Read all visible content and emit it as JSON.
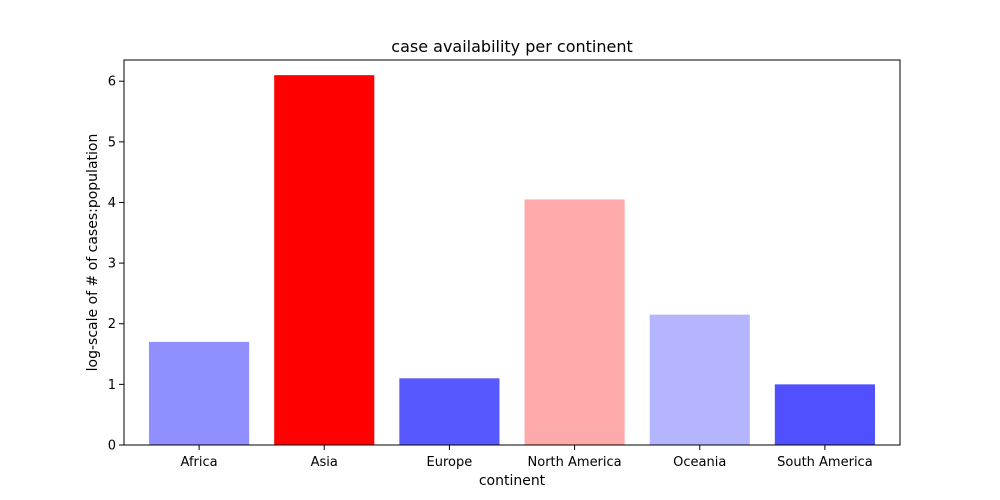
{
  "chart_data": {
    "type": "bar",
    "title": "case availability per continent",
    "xlabel": "continent",
    "ylabel": "log-scale of # of cases:population",
    "categories": [
      "Africa",
      "Asia",
      "Europe",
      "North America",
      "Oceania",
      "South America"
    ],
    "values": [
      1.7,
      6.1,
      1.1,
      4.05,
      2.15,
      1.0
    ],
    "colors": [
      "#8f8fff",
      "#ff0000",
      "#5858ff",
      "#ffaaaa",
      "#b4b4ff",
      "#5050ff"
    ],
    "ylim": [
      0,
      6.35
    ],
    "yticks": [
      "0",
      "1",
      "2",
      "3",
      "4",
      "5",
      "6"
    ],
    "grid": false,
    "legend": "none"
  }
}
